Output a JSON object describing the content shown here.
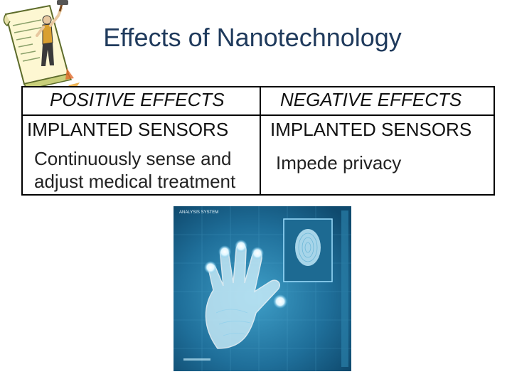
{
  "title": "Effects of Nanotechnology",
  "table": {
    "positive_header": "POSITIVE EFFECTS",
    "negative_header": "NEGATIVE EFFECTS",
    "positive_subheader": "IMPLANTED SENSORS",
    "negative_subheader": "IMPLANTED SENSORS",
    "positive_text_line1": "Continuously sense and",
    "positive_text_line2": "adjust medical treatment",
    "negative_text": "Impede privacy"
  },
  "images": {
    "clipart": "person-hammering-document-clipart",
    "photo": "handprint-biometric-scanner-photo",
    "photo_label": "ANALYSIS SYSTEM"
  }
}
